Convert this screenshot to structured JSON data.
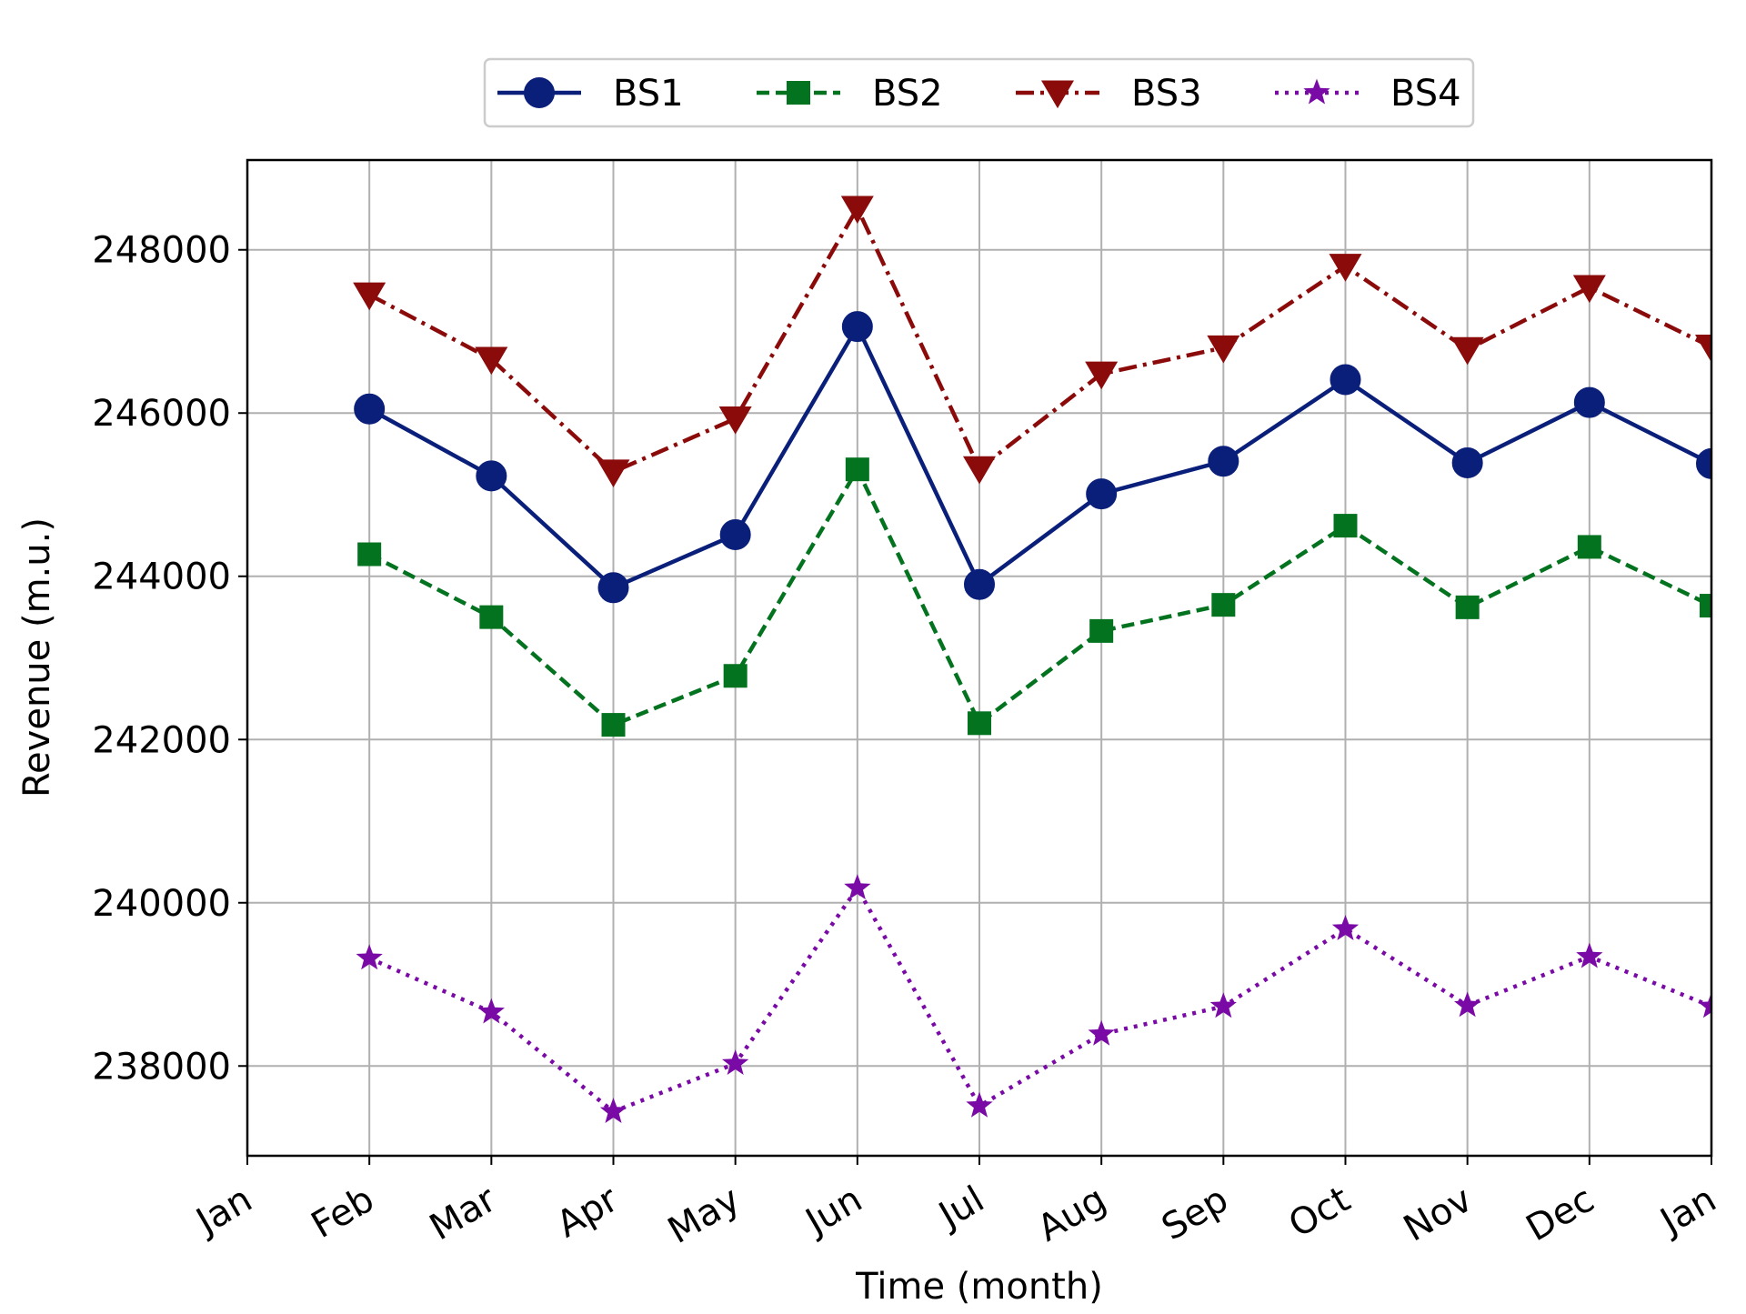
{
  "chart_data": {
    "type": "line",
    "title": "",
    "xlabel": "Time (month)",
    "ylabel": "Revenue (m.u.)",
    "x": [
      "Jan",
      "Feb",
      "Mar",
      "Apr",
      "May",
      "Jun",
      "Jul",
      "Aug",
      "Sep",
      "Oct",
      "Nov",
      "Dec",
      "Jan"
    ],
    "xticks": [
      "Jan",
      "Feb",
      "Mar",
      "Apr",
      "May",
      "Jun",
      "Jul",
      "Aug",
      "Sep",
      "Oct",
      "Nov",
      "Dec",
      "Jan"
    ],
    "yticks": [
      238000,
      240000,
      242000,
      244000,
      246000,
      248000
    ],
    "ylim": [
      236900,
      249100
    ],
    "grid": true,
    "legend_position": "top-center",
    "series": [
      {
        "name": "BS1",
        "color": "#0a1f7a",
        "line_style": "solid",
        "marker": "circle",
        "values": [
          null,
          246050,
          245230,
          243860,
          244510,
          247060,
          243900,
          245010,
          245410,
          246410,
          245390,
          246130,
          245380
        ]
      },
      {
        "name": "BS2",
        "color": "#047320",
        "line_style": "dashed",
        "marker": "square",
        "values": [
          null,
          244270,
          243500,
          242180,
          242780,
          245310,
          242200,
          243330,
          243650,
          244620,
          243620,
          244360,
          243640
        ]
      },
      {
        "name": "BS3",
        "color": "#8b0a0a",
        "line_style": "dashdot",
        "marker": "triangle-down",
        "values": [
          null,
          247450,
          246660,
          245280,
          245930,
          248510,
          245320,
          246480,
          246800,
          247800,
          246780,
          247540,
          246810
        ]
      },
      {
        "name": "BS4",
        "color": "#7a0aa5",
        "line_style": "dotted",
        "marker": "star",
        "values": [
          null,
          239320,
          238660,
          237440,
          238030,
          240180,
          237510,
          238390,
          238730,
          239680,
          238740,
          239340,
          238730
        ]
      }
    ]
  }
}
